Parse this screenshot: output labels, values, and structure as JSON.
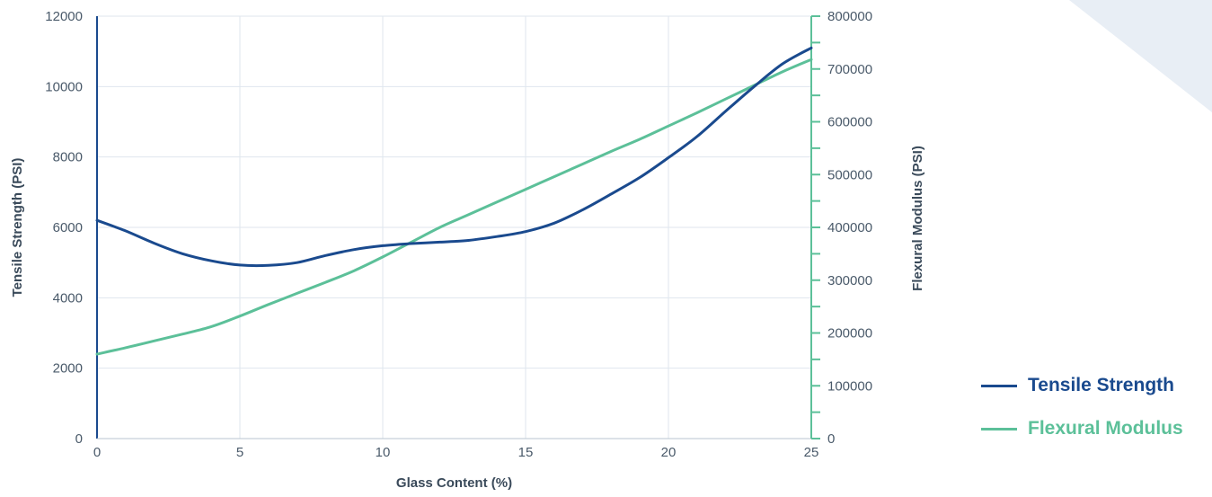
{
  "chart_data": {
    "type": "line",
    "xlabel": "Glass Content (%)",
    "ylabel": "Tensile Strength (PSI)",
    "y2label": "Flexural Modulus (PSI)",
    "xlim": [
      0,
      25
    ],
    "ylim": [
      0,
      12000
    ],
    "y2lim": [
      0,
      800000
    ],
    "x_ticks": [
      "0",
      "5",
      "10",
      "15",
      "20",
      "25"
    ],
    "y_ticks": [
      "0",
      "2000",
      "4000",
      "6000",
      "8000",
      "10000",
      "12000"
    ],
    "y2_ticks": [
      "0",
      "100000",
      "200000",
      "300000",
      "400000",
      "500000",
      "600000",
      "700000",
      "800000"
    ],
    "grid": true,
    "legend_position": "right",
    "series": [
      {
        "name": "Tensile Strength",
        "axis": "left",
        "color": "#1a4a8e",
        "x": [
          0,
          1,
          2,
          3,
          4,
          5,
          6,
          7,
          8,
          9,
          10,
          11,
          12,
          13,
          14,
          15,
          16,
          17,
          18,
          19,
          20,
          21,
          22,
          23,
          24,
          25
        ],
        "y": [
          6200,
          5900,
          5550,
          5250,
          5050,
          4930,
          4920,
          5000,
          5200,
          5370,
          5480,
          5540,
          5580,
          5630,
          5740,
          5880,
          6120,
          6500,
          6950,
          7420,
          7980,
          8580,
          9300,
          10000,
          10650,
          11100
        ]
      },
      {
        "name": "Flexural Modulus",
        "axis": "right",
        "color": "#5cc099",
        "x": [
          0,
          1,
          2,
          3,
          4,
          5,
          6,
          7,
          8,
          9,
          10,
          11,
          12,
          13,
          14,
          15,
          16,
          17,
          18,
          19,
          20,
          21,
          22,
          23,
          24,
          25
        ],
        "y": [
          160000,
          172000,
          185000,
          198000,
          212000,
          232000,
          254000,
          275000,
          296000,
          318000,
          344000,
          372000,
          400000,
          424000,
          448000,
          472000,
          496000,
          520000,
          544000,
          567000,
          592000,
          617000,
          643000,
          669000,
          695000,
          718000
        ]
      }
    ]
  }
}
